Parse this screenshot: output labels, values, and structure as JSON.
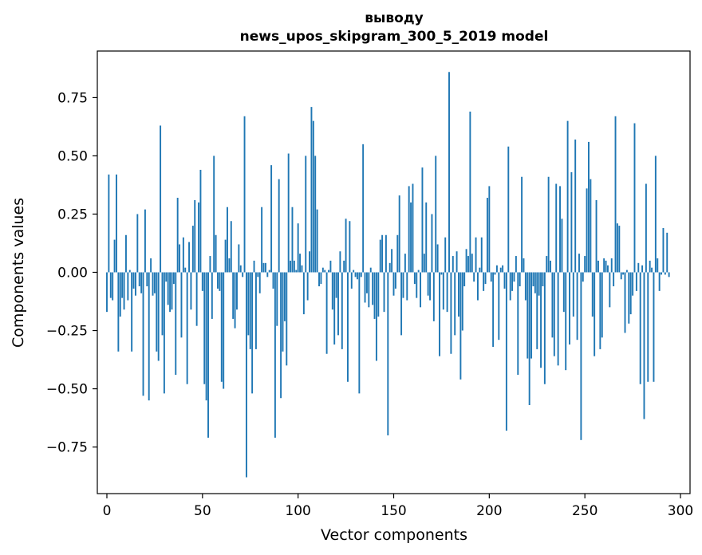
{
  "chart_data": {
    "type": "bar",
    "title": "выводу",
    "subtitle": "news_upos_skipgram_300_5_2019 model",
    "xlabel": "Vector components",
    "ylabel": "Components values",
    "xlim": [
      -5,
      305
    ],
    "ylim": [
      -0.95,
      0.95
    ],
    "xticks": [
      0,
      50,
      100,
      150,
      200,
      250,
      300
    ],
    "xtick_labels": [
      "0",
      "50",
      "100",
      "150",
      "200",
      "250",
      "300"
    ],
    "yticks": [
      -0.75,
      -0.5,
      -0.25,
      0.0,
      0.25,
      0.5,
      0.75
    ],
    "ytick_labels": [
      "−0.75",
      "−0.50",
      "−0.25",
      "0.00",
      "0.25",
      "0.50",
      "0.75"
    ],
    "bar_color": "#1f77b4",
    "grid": false,
    "series": [
      {
        "name": "выводу",
        "values": [
          -0.17,
          0.42,
          -0.11,
          -0.12,
          0.14,
          0.42,
          -0.34,
          -0.19,
          -0.11,
          -0.16,
          0.16,
          -0.12,
          0.01,
          -0.34,
          -0.07,
          -0.1,
          0.25,
          -0.06,
          -0.09,
          -0.53,
          0.27,
          -0.06,
          -0.55,
          0.06,
          -0.1,
          -0.09,
          -0.34,
          -0.38,
          0.63,
          -0.27,
          -0.52,
          -0.04,
          -0.14,
          -0.17,
          -0.16,
          -0.05,
          -0.44,
          0.32,
          0.12,
          -0.28,
          0.15,
          0.02,
          -0.48,
          0.13,
          -0.16,
          0.2,
          0.31,
          -0.23,
          0.3,
          0.44,
          -0.08,
          -0.48,
          -0.55,
          -0.71,
          0.07,
          -0.2,
          0.5,
          0.16,
          -0.07,
          -0.08,
          -0.47,
          -0.5,
          0.14,
          0.28,
          0.06,
          0.22,
          -0.2,
          -0.24,
          -0.16,
          0.12,
          0.03,
          -0.02,
          0.67,
          -0.88,
          -0.27,
          -0.33,
          -0.52,
          0.05,
          -0.33,
          -0.02,
          -0.09,
          0.28,
          0.04,
          0.04,
          -0.02,
          0.01,
          0.46,
          -0.07,
          -0.71,
          -0.23,
          0.4,
          -0.54,
          -0.34,
          -0.21,
          -0.4,
          0.51,
          0.05,
          0.28,
          0.05,
          0.01,
          0.21,
          0.08,
          0.03,
          -0.18,
          0.5,
          -0.12,
          0.09,
          0.71,
          0.65,
          0.5,
          0.27,
          -0.06,
          -0.05,
          0.02,
          0.01,
          -0.35,
          0.01,
          0.05,
          -0.16,
          -0.31,
          -0.11,
          -0.27,
          0.09,
          -0.33,
          0.05,
          0.23,
          -0.47,
          0.22,
          -0.07,
          0.01,
          -0.02,
          -0.03,
          -0.52,
          -0.02,
          0.55,
          -0.13,
          -0.09,
          -0.15,
          0.02,
          -0.14,
          -0.2,
          -0.38,
          -0.19,
          0.14,
          0.16,
          -0.17,
          0.16,
          -0.7,
          0.04,
          0.1,
          -0.1,
          -0.07,
          0.16,
          0.33,
          -0.27,
          -0.11,
          0.08,
          -0.12,
          0.37,
          0.3,
          0.38,
          -0.05,
          -0.11,
          0.01,
          -0.15,
          0.45,
          0.08,
          0.3,
          -0.1,
          -0.12,
          0.25,
          -0.21,
          0.5,
          0.12,
          -0.36,
          -0.01,
          -0.16,
          0.15,
          -0.17,
          0.86,
          -0.35,
          0.07,
          -0.27,
          0.09,
          -0.19,
          -0.46,
          -0.25,
          -0.06,
          0.1,
          0.07,
          0.69,
          0.08,
          -0.04,
          0.15,
          -0.12,
          0.02,
          0.15,
          -0.08,
          -0.05,
          0.32,
          0.37,
          -0.04,
          -0.32,
          -0.01,
          0.03,
          -0.29,
          0.02,
          0.03,
          -0.07,
          -0.68,
          0.54,
          -0.12,
          -0.08,
          -0.04,
          0.07,
          -0.44,
          -0.06,
          0.41,
          0.06,
          -0.12,
          -0.37,
          -0.57,
          -0.37,
          -0.06,
          -0.09,
          -0.33,
          -0.1,
          -0.41,
          -0.06,
          -0.48,
          0.07,
          0.41,
          0.05,
          -0.28,
          -0.36,
          0.38,
          -0.4,
          0.37,
          0.23,
          -0.17,
          -0.42,
          0.65,
          -0.31,
          0.43,
          -0.19,
          0.57,
          -0.29,
          0.08,
          -0.72,
          -0.04,
          0.07,
          0.36,
          0.56,
          0.4,
          -0.19,
          -0.36,
          0.31,
          0.05,
          -0.33,
          -0.28,
          0.06,
          0.05,
          0.03,
          -0.15,
          0.06,
          -0.06,
          0.67,
          0.21,
          0.2,
          -0.03,
          -0.01,
          -0.26,
          0.01,
          -0.22,
          -0.18,
          -0.1,
          0.64,
          -0.08,
          0.04,
          -0.48,
          0.03,
          -0.63,
          0.38,
          -0.47,
          0.05,
          0.02,
          -0.47,
          0.5,
          0.06,
          -0.08,
          -0.01,
          0.19,
          -0.01,
          0.17,
          -0.02
        ]
      }
    ]
  }
}
